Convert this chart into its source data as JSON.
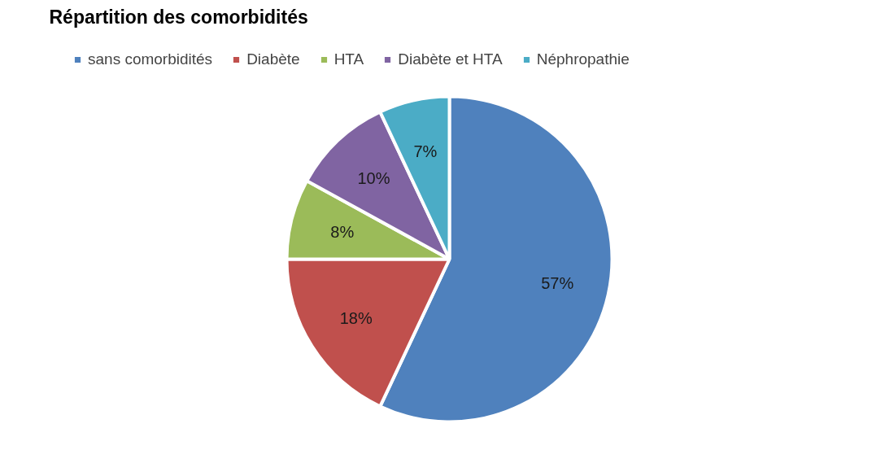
{
  "chart_data": {
    "type": "pie",
    "title": "Répartition des comorbidités",
    "categories": [
      "sans comorbidités",
      "Diabète",
      "HTA",
      "Diabète et HTA",
      "Néphropathie"
    ],
    "values": [
      57,
      18,
      8,
      10,
      7
    ],
    "colors": [
      "#4f81bd",
      "#c0504d",
      "#9bbb59",
      "#8064a2",
      "#4bacc6"
    ],
    "value_labels": [
      "57%",
      "18%",
      "8%",
      "10%",
      "7%"
    ],
    "legend": "top"
  }
}
